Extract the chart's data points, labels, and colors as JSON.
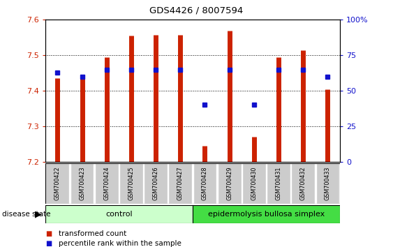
{
  "title": "GDS4426 / 8007594",
  "samples": [
    "GSM700422",
    "GSM700423",
    "GSM700424",
    "GSM700425",
    "GSM700426",
    "GSM700427",
    "GSM700428",
    "GSM700429",
    "GSM700430",
    "GSM700431",
    "GSM700432",
    "GSM700433"
  ],
  "transformed_counts": [
    7.435,
    7.44,
    7.495,
    7.555,
    7.557,
    7.557,
    7.245,
    7.57,
    7.27,
    7.495,
    7.515,
    7.405
  ],
  "percentile_ranks": [
    63,
    60,
    65,
    65,
    65,
    65,
    40,
    65,
    40,
    65,
    65,
    60
  ],
  "ymin": 7.2,
  "ymax": 7.6,
  "y_ticks": [
    7.2,
    7.3,
    7.4,
    7.5,
    7.6
  ],
  "right_yticks": [
    0,
    25,
    50,
    75,
    100
  ],
  "right_yticklabels": [
    "0",
    "25",
    "50",
    "75",
    "100%"
  ],
  "bar_color": "#cc2200",
  "dot_color": "#1111cc",
  "control_light_color": "#ccffcc",
  "disease_green_color": "#44dd44",
  "n_control": 6,
  "n_disease": 6,
  "control_label": "control",
  "disease_label": "epidermolysis bullosa simplex",
  "disease_state_label": "disease state",
  "legend1": "transformed count",
  "legend2": "percentile rank within the sample",
  "axis_color_left": "#cc2200",
  "axis_color_right": "#1111cc"
}
